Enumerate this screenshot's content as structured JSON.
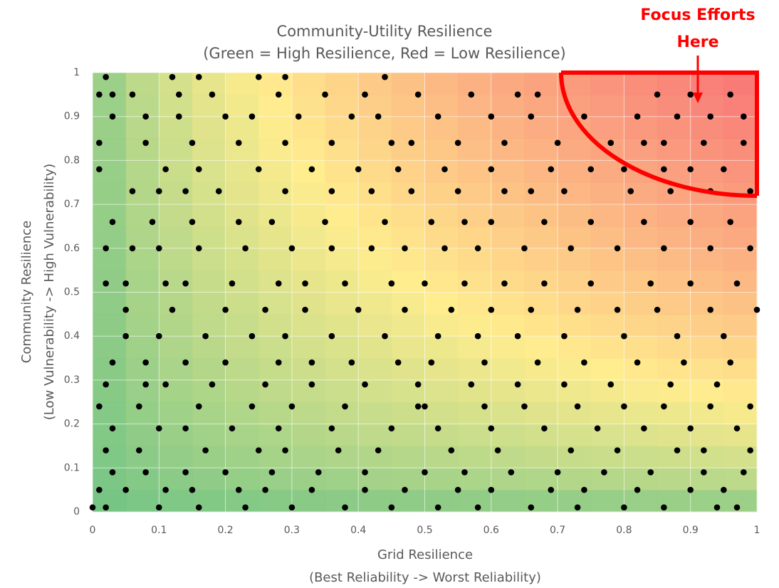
{
  "chart_data": {
    "type": "scatter",
    "title": "Community-Utility Resilience",
    "subtitle": "(Green = High Resilience, Red = Low Resilience)",
    "x_label": [
      "Grid Resilience",
      "(Best Reliability -> Worst Reliability)"
    ],
    "y_label": [
      "Community  Resilience",
      "(Low Vulnerability -> High Vulnerability)"
    ],
    "annotation": [
      "Focus Efforts",
      "Here"
    ],
    "color": "#000000",
    "grid": true,
    "xlim": [
      0,
      1
    ],
    "ylim": [
      0,
      1
    ],
    "xticks": [
      0,
      0.1,
      0.2,
      0.3,
      0.4,
      0.5,
      0.6,
      0.7,
      0.8,
      0.9,
      1
    ],
    "yticks": [
      0,
      0.1,
      0.2,
      0.3,
      0.4,
      0.5,
      0.6,
      0.7,
      0.8,
      0.9,
      1
    ],
    "x": [
      0.02,
      0.12,
      0.16,
      0.25,
      0.29,
      0.44,
      0.01,
      0.03,
      0.06,
      0.13,
      0.18,
      0.28,
      0.35,
      0.41,
      0.49,
      0.57,
      0.64,
      0.67,
      0.85,
      0.9,
      0.96,
      0.03,
      0.08,
      0.13,
      0.2,
      0.24,
      0.31,
      0.39,
      0.43,
      0.52,
      0.6,
      0.66,
      0.74,
      0.82,
      0.88,
      0.93,
      0.98,
      0.01,
      0.08,
      0.15,
      0.22,
      0.29,
      0.36,
      0.45,
      0.48,
      0.55,
      0.62,
      0.7,
      0.78,
      0.83,
      0.86,
      0.92,
      0.98,
      0.01,
      0.11,
      0.16,
      0.25,
      0.33,
      0.4,
      0.46,
      0.53,
      0.6,
      0.69,
      0.75,
      0.8,
      0.86,
      0.9,
      0.95,
      0.06,
      0.1,
      0.14,
      0.19,
      0.29,
      0.36,
      0.42,
      0.48,
      0.55,
      0.62,
      0.66,
      0.71,
      0.81,
      0.87,
      0.93,
      0.99,
      0.03,
      0.09,
      0.15,
      0.22,
      0.27,
      0.35,
      0.44,
      0.51,
      0.56,
      0.6,
      0.68,
      0.75,
      0.83,
      0.9,
      0.96,
      0.02,
      0.06,
      0.1,
      0.16,
      0.23,
      0.3,
      0.36,
      0.42,
      0.47,
      0.53,
      0.58,
      0.65,
      0.72,
      0.79,
      0.86,
      0.93,
      0.99,
      0.02,
      0.05,
      0.11,
      0.14,
      0.21,
      0.28,
      0.32,
      0.38,
      0.45,
      0.5,
      0.56,
      0.62,
      0.68,
      0.75,
      0.84,
      0.9,
      0.97,
      0.05,
      0.12,
      0.2,
      0.26,
      0.32,
      0.4,
      0.47,
      0.54,
      0.6,
      0.66,
      0.73,
      0.79,
      0.85,
      0.93,
      1.0,
      0.05,
      0.1,
      0.17,
      0.24,
      0.29,
      0.36,
      0.44,
      0.52,
      0.58,
      0.64,
      0.71,
      0.8,
      0.88,
      0.95,
      0.03,
      0.08,
      0.14,
      0.2,
      0.28,
      0.33,
      0.39,
      0.46,
      0.51,
      0.59,
      0.67,
      0.74,
      0.82,
      0.89,
      0.96,
      0.02,
      0.08,
      0.11,
      0.18,
      0.26,
      0.33,
      0.41,
      0.49,
      0.57,
      0.64,
      0.71,
      0.78,
      0.87,
      0.94,
      0.01,
      0.07,
      0.16,
      0.24,
      0.3,
      0.38,
      0.49,
      0.5,
      0.59,
      0.65,
      0.73,
      0.8,
      0.86,
      0.93,
      0.99,
      0.03,
      0.1,
      0.14,
      0.21,
      0.28,
      0.36,
      0.45,
      0.52,
      0.6,
      0.68,
      0.76,
      0.83,
      0.9,
      0.97,
      0.02,
      0.07,
      0.17,
      0.25,
      0.29,
      0.37,
      0.43,
      0.54,
      0.61,
      0.72,
      0.79,
      0.88,
      0.92,
      0.99,
      0.03,
      0.08,
      0.14,
      0.2,
      0.27,
      0.34,
      0.41,
      0.5,
      0.56,
      0.63,
      0.7,
      0.77,
      0.84,
      0.92,
      0.98,
      0.01,
      0.05,
      0.11,
      0.15,
      0.22,
      0.26,
      0.33,
      0.41,
      0.47,
      0.55,
      0.6,
      0.69,
      0.74,
      0.82,
      0.9,
      0.95,
      0.0,
      0.02,
      0.1,
      0.16,
      0.23,
      0.3,
      0.38,
      0.45,
      0.52,
      0.58,
      0.66,
      0.73,
      0.8,
      0.86,
      0.94,
      0.97
    ],
    "y": [
      0.99,
      0.99,
      0.99,
      0.99,
      0.99,
      0.99,
      0.95,
      0.95,
      0.95,
      0.95,
      0.95,
      0.95,
      0.95,
      0.95,
      0.95,
      0.95,
      0.95,
      0.95,
      0.95,
      0.95,
      0.95,
      0.9,
      0.9,
      0.9,
      0.9,
      0.9,
      0.9,
      0.9,
      0.9,
      0.9,
      0.9,
      0.9,
      0.9,
      0.9,
      0.9,
      0.9,
      0.9,
      0.84,
      0.84,
      0.84,
      0.84,
      0.84,
      0.84,
      0.84,
      0.84,
      0.84,
      0.84,
      0.84,
      0.84,
      0.84,
      0.84,
      0.84,
      0.84,
      0.78,
      0.78,
      0.78,
      0.78,
      0.78,
      0.78,
      0.78,
      0.78,
      0.78,
      0.78,
      0.78,
      0.78,
      0.78,
      0.78,
      0.78,
      0.73,
      0.73,
      0.73,
      0.73,
      0.73,
      0.73,
      0.73,
      0.73,
      0.73,
      0.73,
      0.73,
      0.73,
      0.73,
      0.73,
      0.73,
      0.73,
      0.66,
      0.66,
      0.66,
      0.66,
      0.66,
      0.66,
      0.66,
      0.66,
      0.66,
      0.66,
      0.66,
      0.66,
      0.66,
      0.66,
      0.66,
      0.6,
      0.6,
      0.6,
      0.6,
      0.6,
      0.6,
      0.6,
      0.6,
      0.6,
      0.6,
      0.6,
      0.6,
      0.6,
      0.6,
      0.6,
      0.6,
      0.6,
      0.52,
      0.52,
      0.52,
      0.52,
      0.52,
      0.52,
      0.52,
      0.52,
      0.52,
      0.52,
      0.52,
      0.52,
      0.52,
      0.52,
      0.52,
      0.52,
      0.52,
      0.46,
      0.46,
      0.46,
      0.46,
      0.46,
      0.46,
      0.46,
      0.46,
      0.46,
      0.46,
      0.46,
      0.46,
      0.46,
      0.46,
      0.46,
      0.4,
      0.4,
      0.4,
      0.4,
      0.4,
      0.4,
      0.4,
      0.4,
      0.4,
      0.4,
      0.4,
      0.4,
      0.4,
      0.4,
      0.34,
      0.34,
      0.34,
      0.34,
      0.34,
      0.34,
      0.34,
      0.34,
      0.34,
      0.34,
      0.34,
      0.34,
      0.34,
      0.34,
      0.34,
      0.29,
      0.29,
      0.29,
      0.29,
      0.29,
      0.29,
      0.29,
      0.29,
      0.29,
      0.29,
      0.29,
      0.29,
      0.29,
      0.29,
      0.24,
      0.24,
      0.24,
      0.24,
      0.24,
      0.24,
      0.24,
      0.24,
      0.24,
      0.24,
      0.24,
      0.24,
      0.24,
      0.24,
      0.24,
      0.19,
      0.19,
      0.19,
      0.19,
      0.19,
      0.19,
      0.19,
      0.19,
      0.19,
      0.19,
      0.19,
      0.19,
      0.19,
      0.19,
      0.14,
      0.14,
      0.14,
      0.14,
      0.14,
      0.14,
      0.14,
      0.14,
      0.14,
      0.14,
      0.14,
      0.14,
      0.14,
      0.14,
      0.09,
      0.09,
      0.09,
      0.09,
      0.09,
      0.09,
      0.09,
      0.09,
      0.09,
      0.09,
      0.09,
      0.09,
      0.09,
      0.09,
      0.09,
      0.05,
      0.05,
      0.05,
      0.05,
      0.05,
      0.05,
      0.05,
      0.05,
      0.05,
      0.05,
      0.05,
      0.05,
      0.05,
      0.05,
      0.05,
      0.05,
      0.01,
      0.01,
      0.01,
      0.01,
      0.01,
      0.01,
      0.01,
      0.01,
      0.01,
      0.01,
      0.01,
      0.01,
      0.01,
      0.01,
      0.01,
      0.01
    ]
  }
}
